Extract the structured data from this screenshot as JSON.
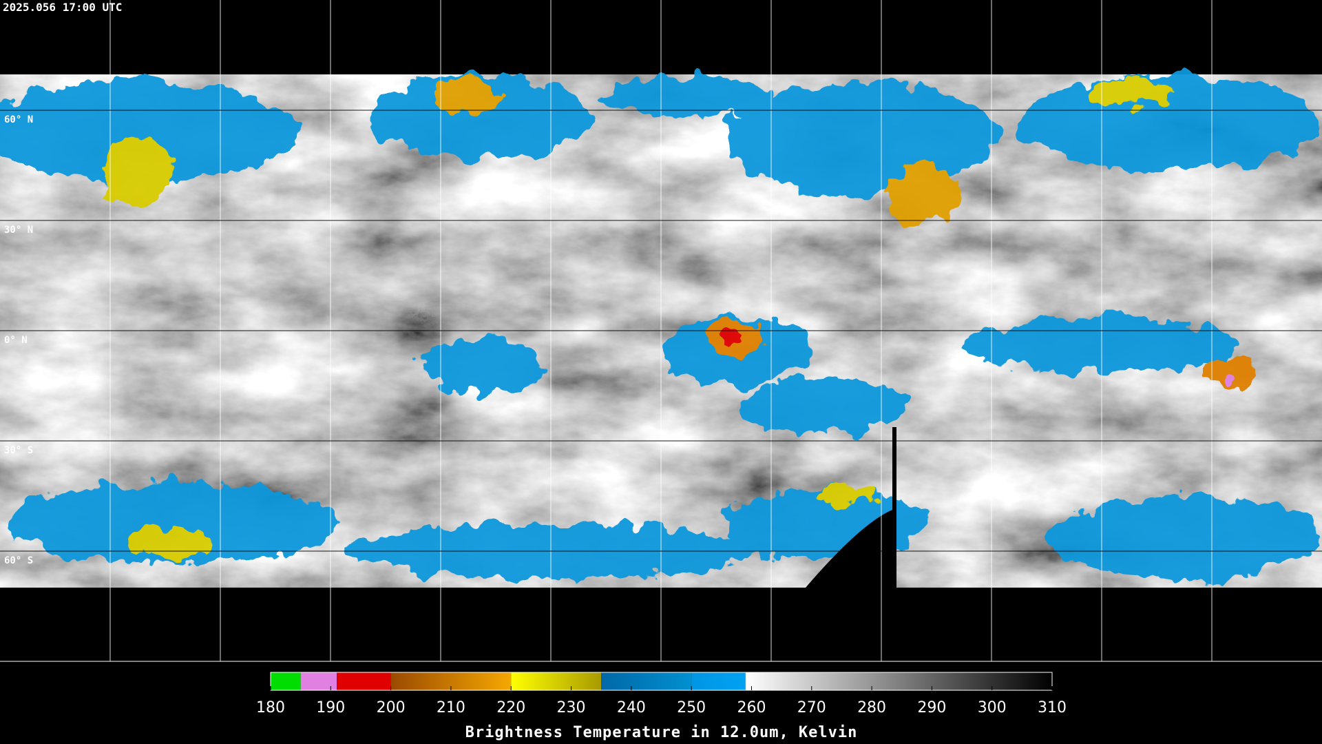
{
  "header": {
    "timestamp": "2025.056 17:00 UTC"
  },
  "map": {
    "latitude_labels": [
      "60° N",
      "30° N",
      "0° N",
      "30° S",
      "60° S"
    ]
  },
  "colorbar": {
    "title": "Brightness Temperature in 12.0um, Kelvin",
    "range": [
      180,
      310
    ],
    "ticks": [
      180,
      190,
      200,
      210,
      220,
      230,
      240,
      250,
      260,
      270,
      280,
      290,
      300,
      310
    ],
    "segments": [
      {
        "from": 180,
        "to": 185,
        "colors": [
          "#00dd00",
          "#00dd00"
        ]
      },
      {
        "from": 185,
        "to": 191,
        "colors": [
          "#e080e0",
          "#e080e0"
        ]
      },
      {
        "from": 191,
        "to": 200,
        "colors": [
          "#e00000",
          "#e00000"
        ]
      },
      {
        "from": 200,
        "to": 220,
        "colors": [
          "#9a4a00",
          "#f5a800"
        ]
      },
      {
        "from": 220,
        "to": 235,
        "colors": [
          "#ffff00",
          "#a89a00"
        ]
      },
      {
        "from": 235,
        "to": 250,
        "colors": [
          "#0068a8",
          "#0090d0"
        ]
      },
      {
        "from": 250,
        "to": 259,
        "colors": [
          "#0096e4",
          "#00a2f2"
        ]
      },
      {
        "from": 259,
        "to": 310,
        "colors": [
          "#ffffff",
          "#000000"
        ]
      }
    ]
  }
}
